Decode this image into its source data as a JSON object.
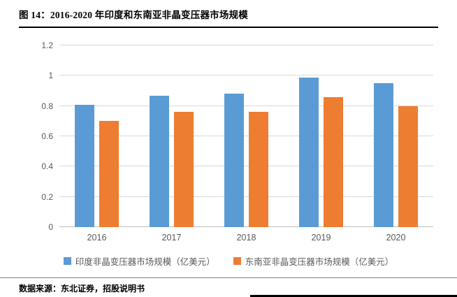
{
  "header": {
    "title": "图 14：2016-2020 年印度和东南亚非晶变压器市场规模"
  },
  "footer": {
    "source": "数据来源：东北证券，招股说明书"
  },
  "colors": {
    "series_india": "#5B9BD5",
    "series_sea": "#ED7D31",
    "gridline": "#D9D9D9",
    "axis_text": "#595959",
    "title_text": "#000000"
  },
  "chart_data": {
    "type": "bar",
    "title": "2016-2020 年印度和东南亚非晶变压器市场规模",
    "categories": [
      "2016",
      "2017",
      "2018",
      "2019",
      "2020"
    ],
    "series": [
      {
        "name": "印度非晶变压器市场规模（亿美元）",
        "color": "#5B9BD5",
        "values": [
          0.81,
          0.87,
          0.88,
          0.99,
          0.95
        ]
      },
      {
        "name": "东南亚非晶变压器市场规模（亿美元）",
        "color": "#ED7D31",
        "values": [
          0.7,
          0.76,
          0.76,
          0.86,
          0.8
        ]
      }
    ],
    "xlabel": "",
    "ylabel": "",
    "ylim": [
      0,
      1.2
    ],
    "yticks": [
      0,
      0.2,
      0.4,
      0.6,
      0.8,
      1,
      1.2
    ],
    "grid": true,
    "legend_position": "bottom"
  }
}
